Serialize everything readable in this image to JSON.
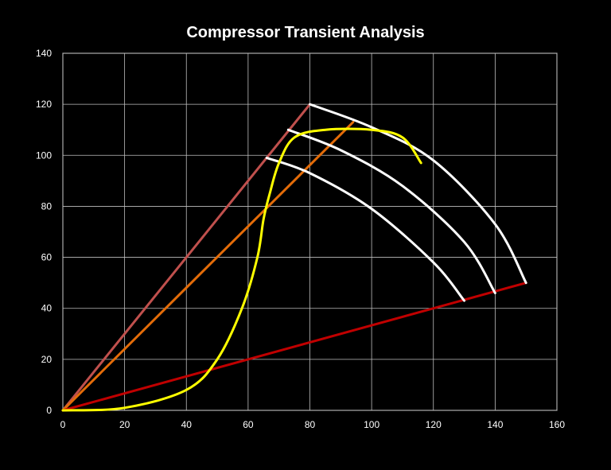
{
  "chart_data": {
    "type": "line",
    "title": "Compressor Transient Analysis",
    "xlabel": "",
    "ylabel": "",
    "xlim": [
      0,
      160
    ],
    "ylim": [
      0,
      140
    ],
    "x_ticks": [
      "0",
      "20",
      "40",
      "60",
      "80",
      "100",
      "120",
      "140",
      "160"
    ],
    "y_ticks": [
      "0",
      "20",
      "40",
      "60",
      "80",
      "100",
      "120",
      "140"
    ],
    "grid": true,
    "legend": "none",
    "background_color": "#000000",
    "series": [
      {
        "color": "#c0504d",
        "x": [
          0,
          80
        ],
        "y": [
          0,
          120
        ]
      },
      {
        "color": "#e36c09",
        "x": [
          0,
          94
        ],
        "y": [
          0,
          113
        ]
      },
      {
        "color": "#c00000",
        "x": [
          0,
          150
        ],
        "y": [
          0,
          50
        ]
      },
      {
        "color": "#ffffff",
        "x": [
          80,
          100,
          120,
          140,
          150
        ],
        "y": [
          120,
          111,
          98,
          73,
          50
        ]
      },
      {
        "color": "#ffffff",
        "x": [
          73,
          90,
          110,
          130,
          140
        ],
        "y": [
          110,
          102,
          88,
          66,
          46
        ]
      },
      {
        "color": "#ffffff",
        "x": [
          66,
          80,
          100,
          120,
          130
        ],
        "y": [
          99,
          93,
          79,
          58,
          43
        ]
      },
      {
        "color": "#ffff00",
        "x": [
          0,
          20,
          40,
          50,
          58,
          63,
          65,
          67,
          70,
          75,
          85,
          100,
          110,
          116
        ],
        "y": [
          0,
          1,
          8,
          20,
          40,
          60,
          75,
          85,
          97,
          107,
          110,
          110,
          107,
          97
        ]
      }
    ]
  }
}
